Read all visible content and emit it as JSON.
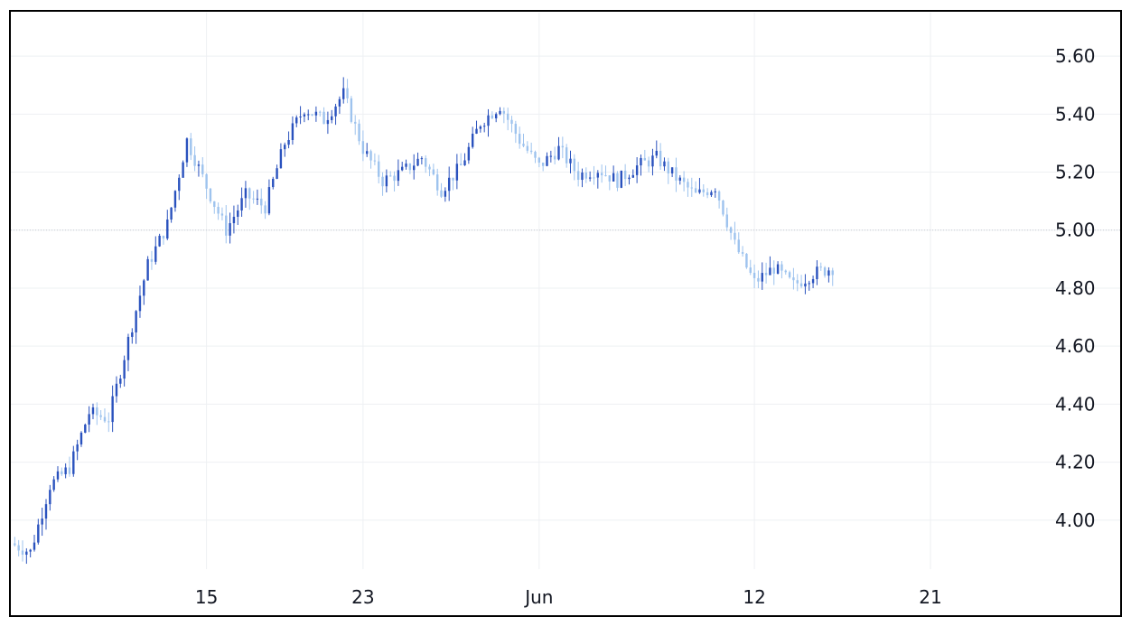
{
  "chart_data": {
    "type": "candlestick",
    "x_axis": {
      "tick_labels": [
        {
          "label": "15",
          "date": "2023-05-15"
        },
        {
          "label": "23",
          "date": "2023-05-23"
        },
        {
          "label": "Jun",
          "date": "2023-06-01"
        },
        {
          "label": "12",
          "date": "2023-06-12"
        },
        {
          "label": "21",
          "date": "2023-06-21"
        }
      ],
      "xlim": [
        "2023-05-05",
        "2023-06-27"
      ]
    },
    "y_axis": {
      "ylim": [
        3.8,
        5.7
      ],
      "tick_labels": [
        "5.60",
        "5.40",
        "5.20",
        "5.00",
        "4.80",
        "4.60",
        "4.40",
        "4.20",
        "4.00"
      ],
      "tick_values": [
        5.6,
        5.4,
        5.2,
        5.0,
        4.8,
        4.6,
        4.4,
        4.2,
        4.0
      ],
      "position": "right"
    },
    "reference_line": 5.0,
    "grid": true,
    "colors": {
      "up": "#2a52be",
      "down": "#9ec3ee",
      "grid": "#eef0f3",
      "reference": "#c8ccd3"
    },
    "close_series": [
      [
        "2023-05-05",
        3.92
      ],
      [
        "2023-05-06",
        3.89
      ],
      [
        "2023-05-07",
        4.12
      ],
      [
        "2023-05-08",
        4.18
      ],
      [
        "2023-05-09",
        4.37
      ],
      [
        "2023-05-10",
        4.35
      ],
      [
        "2023-05-11",
        4.62
      ],
      [
        "2023-05-12",
        4.88
      ],
      [
        "2023-05-13",
        5.02
      ],
      [
        "2023-05-14",
        5.31
      ],
      [
        "2023-05-15",
        5.15
      ],
      [
        "2023-05-16",
        5.0
      ],
      [
        "2023-05-17",
        5.12
      ],
      [
        "2023-05-18",
        5.08
      ],
      [
        "2023-05-19",
        5.3
      ],
      [
        "2023-05-20",
        5.42
      ],
      [
        "2023-05-21",
        5.38
      ],
      [
        "2023-05-22",
        5.47
      ],
      [
        "2023-05-23",
        5.28
      ],
      [
        "2023-05-24",
        5.17
      ],
      [
        "2023-05-25",
        5.2
      ],
      [
        "2023-05-26",
        5.25
      ],
      [
        "2023-05-27",
        5.14
      ],
      [
        "2023-05-28",
        5.22
      ],
      [
        "2023-05-29",
        5.37
      ],
      [
        "2023-05-30",
        5.43
      ],
      [
        "2023-05-31",
        5.31
      ],
      [
        "2023-06-01",
        5.22
      ],
      [
        "2023-06-02",
        5.28
      ],
      [
        "2023-06-03",
        5.19
      ],
      [
        "2023-06-04",
        5.21
      ],
      [
        "2023-06-05",
        5.17
      ],
      [
        "2023-06-06",
        5.22
      ],
      [
        "2023-06-07",
        5.25
      ],
      [
        "2023-06-08",
        5.18
      ],
      [
        "2023-06-09",
        5.12
      ],
      [
        "2023-06-10",
        5.15
      ],
      [
        "2023-06-11",
        4.95
      ],
      [
        "2023-06-12",
        4.82
      ],
      [
        "2023-06-13",
        4.87
      ],
      [
        "2023-06-14",
        4.81
      ],
      [
        "2023-06-15",
        4.85
      ],
      [
        "2023-06-16",
        4.87
      ]
    ]
  }
}
